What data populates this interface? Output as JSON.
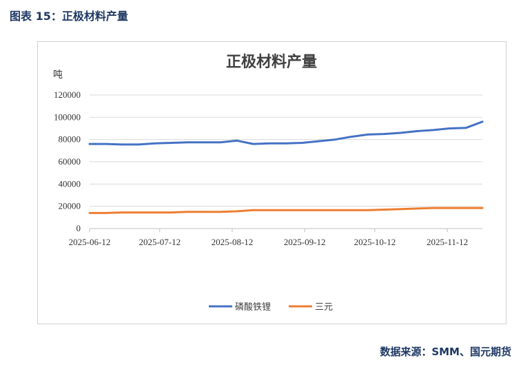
{
  "caption": "图表 15：正极材料产量",
  "source": "数据来源：SMM、国元期货",
  "colors": {
    "lfp": "#4472c4",
    "ternary": "#ed7d31"
  },
  "chart_data": {
    "type": "line",
    "title": "正极材料产量",
    "ylabel": "吨",
    "xlabel": "",
    "ylim": [
      0,
      120000
    ],
    "yticks": [
      "0",
      "20000",
      "40000",
      "60000",
      "80000",
      "100000",
      "120000"
    ],
    "xticks": [
      "2025-06-12",
      "2025-07-12",
      "2025-08-12",
      "2025-09-12",
      "2025-10-12",
      "2025-11-12"
    ],
    "x": [
      "2025-06-12",
      "2025-06-19",
      "2025-06-26",
      "2025-07-03",
      "2025-07-10",
      "2025-07-17",
      "2025-07-24",
      "2025-07-31",
      "2025-08-07",
      "2025-08-14",
      "2025-08-21",
      "2025-08-28",
      "2025-09-04",
      "2025-09-11",
      "2025-09-18",
      "2025-09-25",
      "2025-10-02",
      "2025-10-09",
      "2025-10-16",
      "2025-10-23",
      "2025-10-30",
      "2025-11-06",
      "2025-11-13",
      "2025-11-20",
      "2025-11-27"
    ],
    "series": [
      {
        "name": "磷酸铁锂",
        "color": "#4472c4",
        "values": [
          76000,
          76000,
          75500,
          75500,
          76500,
          77000,
          77500,
          77500,
          77500,
          79000,
          76000,
          76500,
          76500,
          77000,
          78500,
          80000,
          82500,
          84500,
          85000,
          86000,
          87500,
          88500,
          90000,
          90500,
          96000
        ]
      },
      {
        "name": "三元",
        "color": "#ed7d31",
        "values": [
          14000,
          14000,
          14500,
          14500,
          14500,
          14500,
          15000,
          15000,
          15000,
          15500,
          16500,
          16500,
          16500,
          16500,
          16500,
          16500,
          16500,
          16500,
          17000,
          17500,
          18000,
          18500,
          18500,
          18500,
          18500
        ]
      }
    ],
    "legend": "bottom",
    "grid": true
  }
}
